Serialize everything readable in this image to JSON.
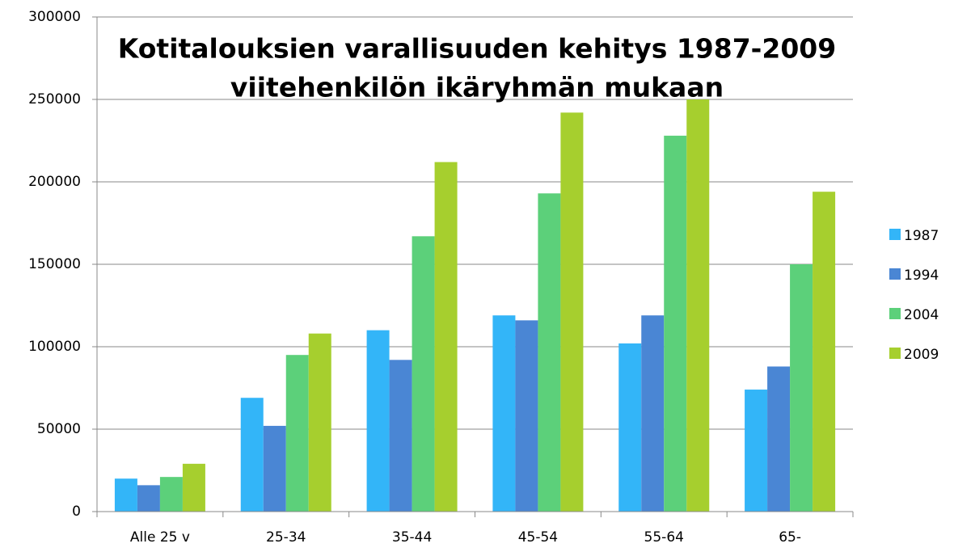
{
  "chart_data": {
    "type": "bar",
    "title": [
      "Kotitalouksien varallisuuden kehitys 1987-2009",
      "viitehenkilön ikäryhmän mukaan"
    ],
    "categories": [
      "Alle 25 v",
      "25-34",
      "35-44",
      "45-54",
      "55-64",
      "65-"
    ],
    "series": [
      {
        "name": "1987",
        "color": "#33b5f8",
        "values": [
          20000,
          69000,
          110000,
          119000,
          102000,
          74000
        ]
      },
      {
        "name": "1994",
        "color": "#4a86d4",
        "values": [
          16000,
          52000,
          92000,
          116000,
          119000,
          88000
        ]
      },
      {
        "name": "2004",
        "color": "#5cd07a",
        "values": [
          21000,
          95000,
          167000,
          193000,
          228000,
          150000
        ]
      },
      {
        "name": "2009",
        "color": "#a6cf2e",
        "values": [
          29000,
          108000,
          212000,
          242000,
          250000,
          194000
        ]
      }
    ],
    "ylim": [
      0,
      300000
    ],
    "yticks": [
      0,
      50000,
      100000,
      150000,
      200000,
      250000,
      300000
    ],
    "grid": true,
    "legend": "right"
  }
}
